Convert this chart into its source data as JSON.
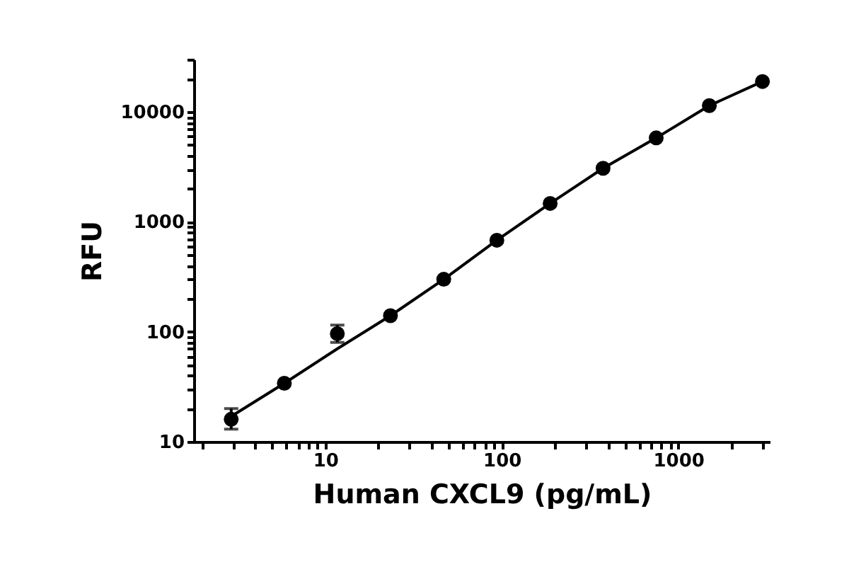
{
  "chart_data": {
    "type": "scatter",
    "xlabel": "Human CXCL9 (pg/mL)",
    "ylabel": "RFU",
    "log": "xy",
    "grid": false,
    "xlim": [
      1.8,
      3300
    ],
    "ylim": [
      10,
      30000
    ],
    "xticks": [
      {
        "value": 2,
        "label": null
      },
      {
        "value": 3,
        "label": null
      },
      {
        "value": 4,
        "label": null
      },
      {
        "value": 5,
        "label": null
      },
      {
        "value": 6,
        "label": null
      },
      {
        "value": 7,
        "label": null
      },
      {
        "value": 8,
        "label": null
      },
      {
        "value": 9,
        "label": null
      },
      10,
      {
        "value": 20,
        "label": null
      },
      {
        "value": 30,
        "label": null
      },
      {
        "value": 40,
        "label": null
      },
      {
        "value": 50,
        "label": null
      },
      {
        "value": 60,
        "label": null
      },
      {
        "value": 70,
        "label": null
      },
      {
        "value": 80,
        "label": null
      },
      {
        "value": 90,
        "label": null
      },
      100,
      {
        "value": 200,
        "label": null
      },
      {
        "value": 300,
        "label": null
      },
      {
        "value": 400,
        "label": null
      },
      {
        "value": 500,
        "label": null
      },
      {
        "value": 600,
        "label": null
      },
      {
        "value": 700,
        "label": null
      },
      {
        "value": 800,
        "label": null
      },
      {
        "value": 900,
        "label": null
      },
      1000,
      {
        "value": 2000,
        "label": null
      },
      {
        "value": 3000,
        "label": null
      }
    ],
    "yticks": [
      10,
      {
        "value": 20,
        "label": null
      },
      {
        "value": 30,
        "label": null
      },
      {
        "value": 40,
        "label": null
      },
      {
        "value": 50,
        "label": null
      },
      {
        "value": 60,
        "label": null
      },
      {
        "value": 70,
        "label": null
      },
      {
        "value": 80,
        "label": null
      },
      {
        "value": 90,
        "label": null
      },
      100,
      {
        "value": 200,
        "label": null
      },
      {
        "value": 300,
        "label": null
      },
      {
        "value": 400,
        "label": null
      },
      {
        "value": 500,
        "label": null
      },
      {
        "value": 600,
        "label": null
      },
      {
        "value": 700,
        "label": null
      },
      {
        "value": 800,
        "label": null
      },
      {
        "value": 900,
        "label": null
      },
      1000,
      {
        "value": 2000,
        "label": null
      },
      {
        "value": 3000,
        "label": null
      },
      {
        "value": 4000,
        "label": null
      },
      {
        "value": 5000,
        "label": null
      },
      {
        "value": 6000,
        "label": null
      },
      {
        "value": 7000,
        "label": null
      },
      {
        "value": 8000,
        "label": null
      },
      {
        "value": 9000,
        "label": null
      },
      10000,
      {
        "value": 20000,
        "label": null
      },
      {
        "value": 30000,
        "label": null
      }
    ],
    "series": [
      {
        "color": "#000000",
        "marker": "circle",
        "x": [
          2.93,
          5.86,
          11.7,
          23.4,
          46.9,
          93.8,
          188,
          375,
          750,
          1500,
          3000
        ],
        "values": [
          16,
          34,
          96,
          140,
          300,
          680,
          1470,
          3070,
          5800,
          11400,
          18900
        ],
        "errors": [
          [
            13,
            20
          ],
          null,
          [
            80,
            115
          ],
          null,
          null,
          null,
          null,
          null,
          null,
          null,
          null
        ]
      },
      {
        "type": "line",
        "color": "#000000",
        "marker": "none",
        "x": [
          2.93,
          5.86,
          11.7,
          23.4,
          46.9,
          93.8,
          188,
          375,
          750,
          1500,
          3000
        ],
        "values": [
          17,
          34,
          70,
          140,
          300,
          680,
          1470,
          3070,
          5800,
          11400,
          18900
        ]
      }
    ]
  }
}
